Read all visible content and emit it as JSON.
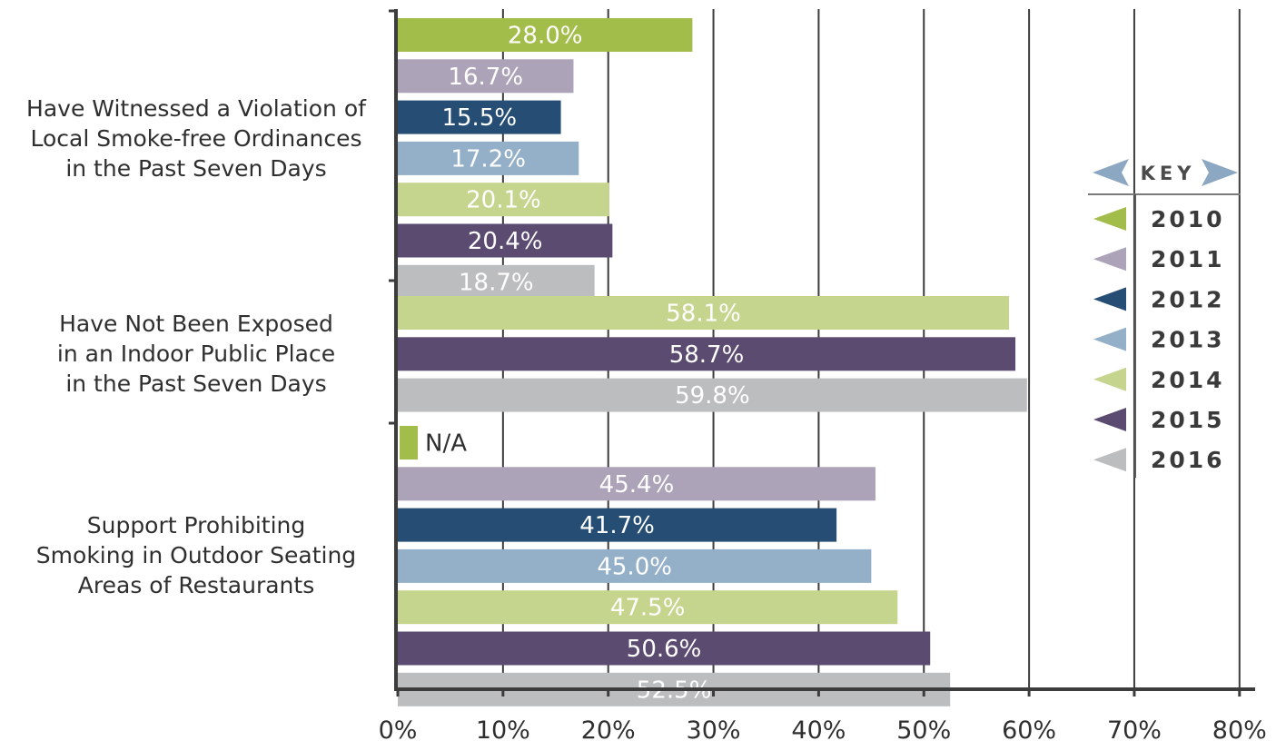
{
  "chart_data": {
    "type": "bar",
    "orientation": "horizontal",
    "xlim": [
      0,
      80
    ],
    "x_ticks": [
      "0%",
      "10%",
      "20%",
      "30%",
      "40%",
      "50%",
      "60%",
      "70%",
      "80%"
    ],
    "grid": true,
    "legend_position": "right",
    "legend_title": "KEY",
    "series": [
      {
        "name": "2010",
        "color": "#a3bd4a"
      },
      {
        "name": "2011",
        "color": "#ada3b8"
      },
      {
        "name": "2012",
        "color": "#264d73"
      },
      {
        "name": "2013",
        "color": "#94b0c8"
      },
      {
        "name": "2014",
        "color": "#c6d58e"
      },
      {
        "name": "2015",
        "color": "#5b4b70"
      },
      {
        "name": "2016",
        "color": "#bcbdbf"
      }
    ],
    "groups": [
      {
        "label": [
          "Have Witnessed a Violation of",
          "Local Smoke-free Ordinances",
          "in the Past Seven Days"
        ],
        "bars": [
          {
            "series": "2010",
            "value": 28.0,
            "label": "28.0%"
          },
          {
            "series": "2011",
            "value": 16.7,
            "label": "16.7%"
          },
          {
            "series": "2012",
            "value": 15.5,
            "label": "15.5%"
          },
          {
            "series": "2013",
            "value": 17.2,
            "label": "17.2%"
          },
          {
            "series": "2014",
            "value": 20.1,
            "label": "20.1%"
          },
          {
            "series": "2015",
            "value": 20.4,
            "label": "20.4%"
          },
          {
            "series": "2016",
            "value": 18.7,
            "label": "18.7%"
          }
        ]
      },
      {
        "label": [
          "Have Not Been Exposed",
          "in an Indoor Public Place",
          "in the Past Seven Days"
        ],
        "bars": [
          {
            "series": "2014",
            "value": 58.1,
            "label": "58.1%"
          },
          {
            "series": "2015",
            "value": 58.7,
            "label": "58.7%"
          },
          {
            "series": "2016",
            "value": 59.8,
            "label": "59.8%"
          }
        ]
      },
      {
        "label": [
          "Support Prohibiting",
          "Smoking in Outdoor Seating",
          "Areas of Restaurants"
        ],
        "bars": [
          {
            "series": "2010",
            "value": null,
            "label": "N/A"
          },
          {
            "series": "2011",
            "value": 45.4,
            "label": "45.4%"
          },
          {
            "series": "2012",
            "value": 41.7,
            "label": "41.7%"
          },
          {
            "series": "2013",
            "value": 45.0,
            "label": "45.0%"
          },
          {
            "series": "2014",
            "value": 47.5,
            "label": "47.5%"
          },
          {
            "series": "2015",
            "value": 50.6,
            "label": "50.6%"
          },
          {
            "series": "2016",
            "value": 52.5,
            "label": "52.5%"
          }
        ]
      }
    ]
  }
}
